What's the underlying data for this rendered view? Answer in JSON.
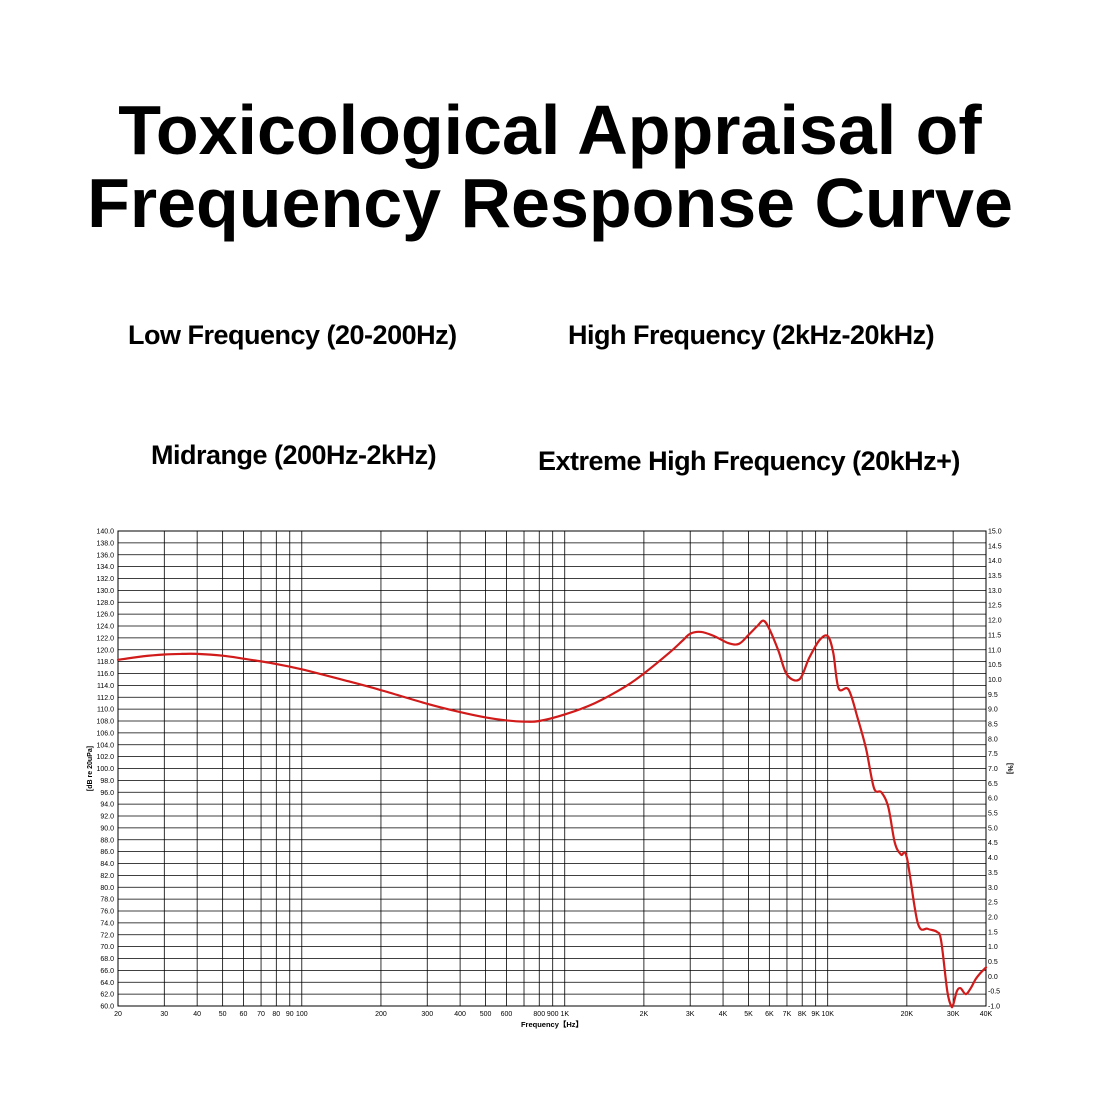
{
  "title": {
    "line1": "Toxicological Appraisal of",
    "line2": "Frequency Response Curve"
  },
  "bands": {
    "low": "Low Frequency (20-200Hz)",
    "high": "High Frequency (2kHz-20kHz)",
    "mid": "Midrange (200Hz-2kHz)",
    "extreme": "Extreme High Frequency (20kHz+)"
  },
  "chart_data": {
    "type": "line",
    "x_scale": "log",
    "xlabel": "Frequency【Hz】",
    "ylabel": "[dB re 20uPa]",
    "y2label": "[%]",
    "xlim": [
      20,
      40000
    ],
    "ylim": [
      60.0,
      140.0
    ],
    "y2lim": [
      -1.0,
      15.0
    ],
    "grid": true,
    "x_ticks": [
      {
        "value": 20,
        "label": "20"
      },
      {
        "value": 30,
        "label": "30"
      },
      {
        "value": 40,
        "label": "40"
      },
      {
        "value": 50,
        "label": "50"
      },
      {
        "value": 60,
        "label": "60"
      },
      {
        "value": 70,
        "label": "70"
      },
      {
        "value": 80,
        "label": "80"
      },
      {
        "value": 90,
        "label": "90"
      },
      {
        "value": 100,
        "label": "100"
      },
      {
        "value": 200,
        "label": "200"
      },
      {
        "value": 300,
        "label": "300"
      },
      {
        "value": 400,
        "label": "400"
      },
      {
        "value": 500,
        "label": "500"
      },
      {
        "value": 600,
        "label": "600"
      },
      {
        "value": 800,
        "label": "800"
      },
      {
        "value": 900,
        "label": "900"
      },
      {
        "value": 1000,
        "label": "1K"
      },
      {
        "value": 2000,
        "label": "2K"
      },
      {
        "value": 3000,
        "label": "3K"
      },
      {
        "value": 4000,
        "label": "4K"
      },
      {
        "value": 5000,
        "label": "5K"
      },
      {
        "value": 6000,
        "label": "6K"
      },
      {
        "value": 7000,
        "label": "7K"
      },
      {
        "value": 8000,
        "label": "8K"
      },
      {
        "value": 9000,
        "label": "9K"
      },
      {
        "value": 10000,
        "label": "10K"
      },
      {
        "value": 20000,
        "label": "20K"
      },
      {
        "value": 30000,
        "label": "30K"
      },
      {
        "value": 40000,
        "label": "40K"
      }
    ],
    "extra_gridlines_x": [
      700
    ],
    "y_ticks": [
      "60.0",
      "62.0",
      "64.0",
      "66.0",
      "68.0",
      "70.0",
      "72.0",
      "74.0",
      "76.0",
      "78.0",
      "80.0",
      "82.0",
      "84.0",
      "86.0",
      "88.0",
      "90.0",
      "92.0",
      "94.0",
      "96.0",
      "98.0",
      "100.0",
      "102.0",
      "104.0",
      "106.0",
      "108.0",
      "110.0",
      "112.0",
      "114.0",
      "116.0",
      "118.0",
      "120.0",
      "122.0",
      "124.0",
      "126.0",
      "128.0",
      "130.0",
      "132.0",
      "134.0",
      "136.0",
      "138.0",
      "140.0"
    ],
    "y2_ticks": [
      "-1.0",
      "-0.5",
      "0.0",
      "0.5",
      "1.0",
      "1.5",
      "2.0",
      "2.5",
      "3.0",
      "3.5",
      "4.0",
      "4.5",
      "5.0",
      "5.5",
      "6.0",
      "6.5",
      "7.0",
      "7.5",
      "8.0",
      "8.5",
      "9.0",
      "9.5",
      "10.0",
      "10.5",
      "11.0",
      "11.5",
      "12.0",
      "12.5",
      "13.0",
      "13.5",
      "14.0",
      "14.5",
      "15.0"
    ],
    "series": [
      {
        "color": "#d11a1a",
        "x": [
          20,
          25,
          30,
          35,
          40,
          50,
          60,
          80,
          100,
          150,
          200,
          300,
          400,
          500,
          600,
          700,
          800,
          1000,
          1300,
          1700,
          2000,
          2500,
          2800,
          3000,
          3300,
          3700,
          4200,
          4600,
          5000,
          5400,
          5700,
          6000,
          6500,
          7000,
          7800,
          8500,
          9300,
          10000,
          10500,
          11000,
          12000,
          13000,
          14000,
          15000,
          16000,
          17000,
          18000,
          19000,
          20000,
          22000,
          24000,
          26000,
          27000,
          28500,
          29500,
          30000,
          31000,
          32000,
          33500,
          35000,
          36500,
          38000,
          40000
        ],
        "y": [
          118.3,
          118.9,
          119.2,
          119.3,
          119.3,
          119.0,
          118.5,
          117.6,
          116.7,
          114.7,
          113.2,
          110.9,
          109.5,
          108.6,
          108.1,
          107.9,
          108.0,
          109.1,
          111.0,
          113.8,
          116.0,
          119.5,
          121.5,
          122.7,
          123.0,
          122.3,
          121.1,
          121.0,
          122.5,
          124.0,
          124.9,
          123.5,
          119.8,
          115.8,
          115.0,
          118.6,
          121.6,
          122.3,
          119.5,
          113.5,
          113.3,
          108.5,
          103.3,
          96.7,
          96.0,
          93.5,
          87.5,
          85.5,
          85.0,
          74.0,
          73.0,
          72.5,
          71.0,
          62.5,
          60.0,
          60.2,
          62.5,
          63.0,
          62.0,
          63.0,
          64.5,
          65.5,
          66.5
        ]
      }
    ]
  }
}
